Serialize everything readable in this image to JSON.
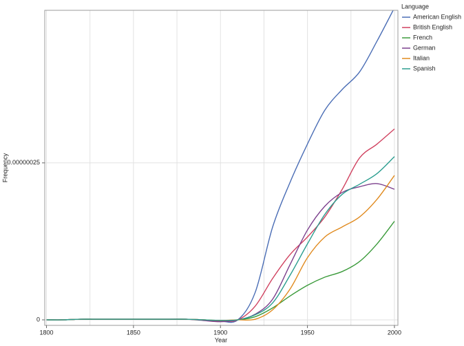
{
  "chart_data": {
    "type": "line",
    "x_label": "Year",
    "y_label": "Frequency",
    "legend_title": "Language",
    "legend": "right",
    "x": [
      1800,
      1810,
      1820,
      1830,
      1840,
      1850,
      1860,
      1870,
      1880,
      1890,
      1900,
      1910,
      1920,
      1930,
      1940,
      1950,
      1960,
      1970,
      1980,
      1990,
      2000
    ],
    "xlim": [
      1799,
      2002
    ],
    "xticks": [
      1800,
      1850,
      1900,
      1950,
      2000
    ],
    "x_grid_lines": [
      1800,
      1825,
      1850,
      1875,
      1900,
      1925,
      1950,
      1975,
      2000
    ],
    "ylim": [
      -8.8e-09,
      4.93e-07
    ],
    "yticks": [
      0,
      {
        "value": 2.5e-07,
        "label": "0.00000025"
      }
    ],
    "grid": true,
    "series": [
      {
        "name": "American English",
        "color": "#4a6db5",
        "values": [
          0,
          0,
          1e-09,
          1e-09,
          1e-09,
          1e-09,
          1e-09,
          1e-09,
          1e-09,
          0,
          -2e-09,
          0,
          4.4e-08,
          1.48e-07,
          2.19e-07,
          2.8e-07,
          3.34e-07,
          3.67e-07,
          3.95e-07,
          4.44e-07,
          4.97e-07
        ]
      },
      {
        "name": "British English",
        "color": "#d0415f",
        "values": [
          0,
          0,
          1e-09,
          1e-09,
          1e-09,
          1e-09,
          1e-09,
          1e-09,
          1e-09,
          0,
          -2e-09,
          0,
          2.2e-08,
          6.6e-08,
          1.04e-07,
          1.32e-07,
          1.64e-07,
          2.08e-07,
          2.58e-07,
          2.8e-07,
          3.04e-07
        ]
      },
      {
        "name": "French",
        "color": "#3a9a3a",
        "values": [
          0,
          0,
          1e-09,
          1e-09,
          1e-09,
          1e-09,
          1e-09,
          1e-09,
          1e-09,
          0,
          -1e-09,
          0,
          5e-09,
          1.9e-08,
          3.8e-08,
          5.5e-08,
          6.8e-08,
          7.7e-08,
          9.3e-08,
          1.21e-07,
          1.57e-07
        ]
      },
      {
        "name": "German",
        "color": "#7b3f8c",
        "values": [
          0,
          0,
          1e-09,
          1e-09,
          1e-09,
          1e-09,
          1e-09,
          1e-09,
          1e-09,
          -1e-09,
          -3e-09,
          0,
          9e-09,
          3.3e-08,
          8.8e-08,
          1.43e-07,
          1.81e-07,
          2.03e-07,
          2.12e-07,
          2.17e-07,
          2.08e-07
        ]
      },
      {
        "name": "Italian",
        "color": "#e08a1e",
        "values": [
          0,
          0,
          1e-09,
          1e-09,
          1e-09,
          1e-09,
          1e-09,
          1e-09,
          1e-09,
          0,
          -1e-09,
          0,
          1e-09,
          1.6e-08,
          4.9e-08,
          9.9e-08,
          1.32e-07,
          1.48e-07,
          1.64e-07,
          1.92e-07,
          2.3e-07
        ]
      },
      {
        "name": "Spanish",
        "color": "#2a9d8f",
        "values": [
          0,
          0,
          1e-09,
          1e-09,
          1e-09,
          1e-09,
          1e-09,
          1e-09,
          1e-09,
          0,
          -1e-09,
          0,
          8e-09,
          2.7e-08,
          7.1e-08,
          1.21e-07,
          1.68e-07,
          2e-07,
          2.16e-07,
          2.33e-07,
          2.6e-07
        ]
      }
    ]
  }
}
